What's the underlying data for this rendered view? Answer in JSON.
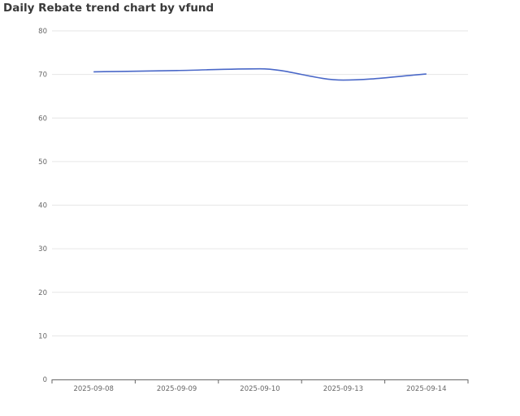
{
  "chart_data": {
    "type": "line",
    "title": "Daily Rebate trend chart by vfund",
    "xlabel": "",
    "ylabel": "",
    "categories": [
      "2025-09-08",
      "2025-09-09",
      "2025-09-10",
      "2025-09-13",
      "2025-09-14"
    ],
    "series": [
      {
        "values": [
          70.6,
          70.9,
          71.3,
          68.7,
          70.1
        ],
        "color": "#4a68c8"
      }
    ],
    "ylim": [
      0,
      80
    ],
    "yticks": [
      0,
      10,
      20,
      30,
      40,
      50,
      60,
      70,
      80
    ],
    "grid": true,
    "smooth": true
  }
}
